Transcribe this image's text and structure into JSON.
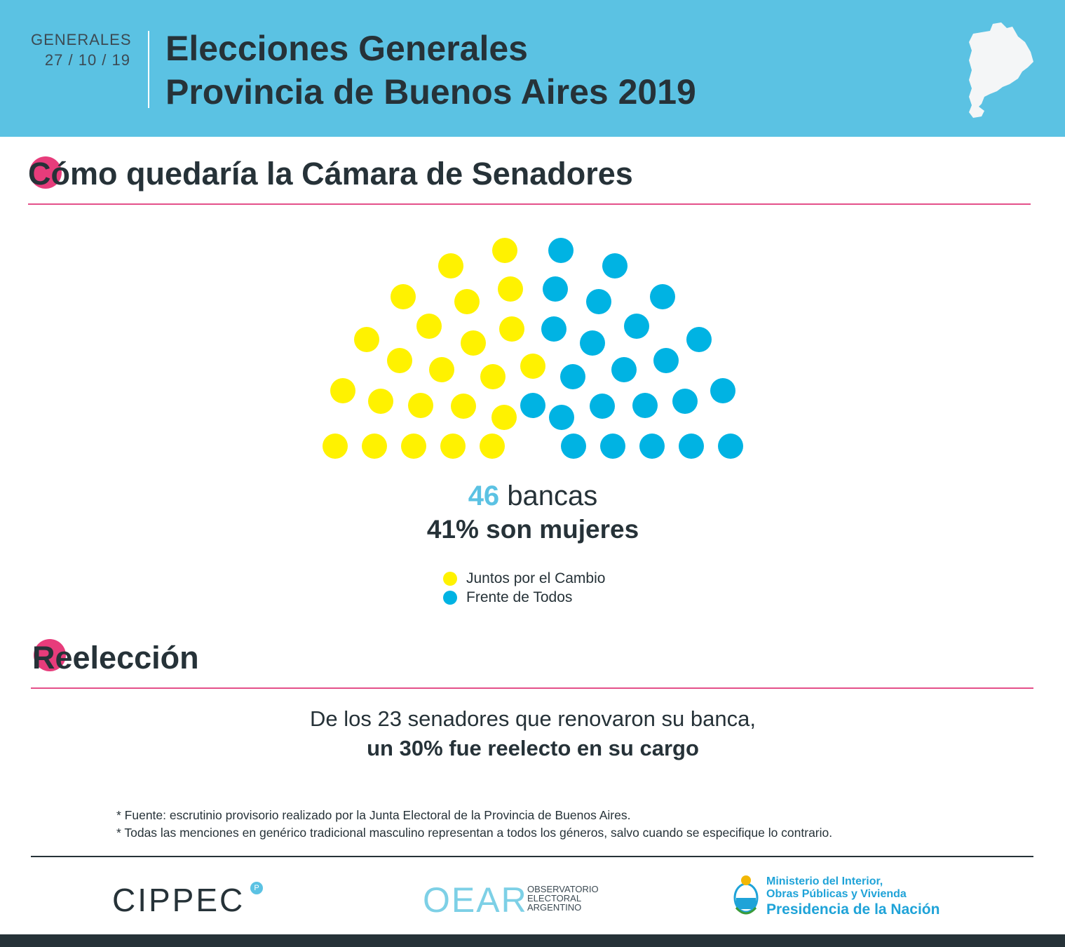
{
  "header": {
    "label_small": "GENERALES",
    "date": "27 / 10 / 19",
    "title_line1": "Elecciones Generales",
    "title_line2": "Provincia de Buenos Aires 2019"
  },
  "senate_section": {
    "title": "Cómo quedaría la Cámara de Senadores",
    "title_initial": "C"
  },
  "chamber": {
    "total_seats": "46",
    "seats_label": "bancas",
    "women_text": "41% son mujeres",
    "parties": [
      {
        "name": "Juntos por el Cambio",
        "seats": 23,
        "color": "#fff200"
      },
      {
        "name": "Frente de Todos",
        "seats": 23,
        "color": "#00b3e3"
      }
    ]
  },
  "reelection_section": {
    "title": "Reelección",
    "title_initial": "R",
    "line1": "De los 23 senadores que renovaron su banca,",
    "line2": "un 30% fue reelecto en su cargo"
  },
  "notes": [
    "* Fuente: escrutinio provisorio realizado por la Junta Electoral de la Provincia de Buenos Aires.",
    "* Todas las menciones en genérico tradicional masculino representan a todos los géneros, salvo cuando se especifique lo contrario."
  ],
  "footer": {
    "cippec": "CIPPEC",
    "oear_logo": "OEAR",
    "oear_line1": "OBSERVATORIO",
    "oear_line2": "ELECTORAL",
    "oear_line3": "ARGENTINO",
    "ministerio_line1": "Ministerio del Interior,",
    "ministerio_line2": "Obras Públicas y Vivienda",
    "ministerio_line3": "Presidencia de la Nación"
  },
  "colors": {
    "header_bg": "#5bc2e3",
    "accent_pink": "#e73c7b",
    "text_dark": "#263238"
  }
}
